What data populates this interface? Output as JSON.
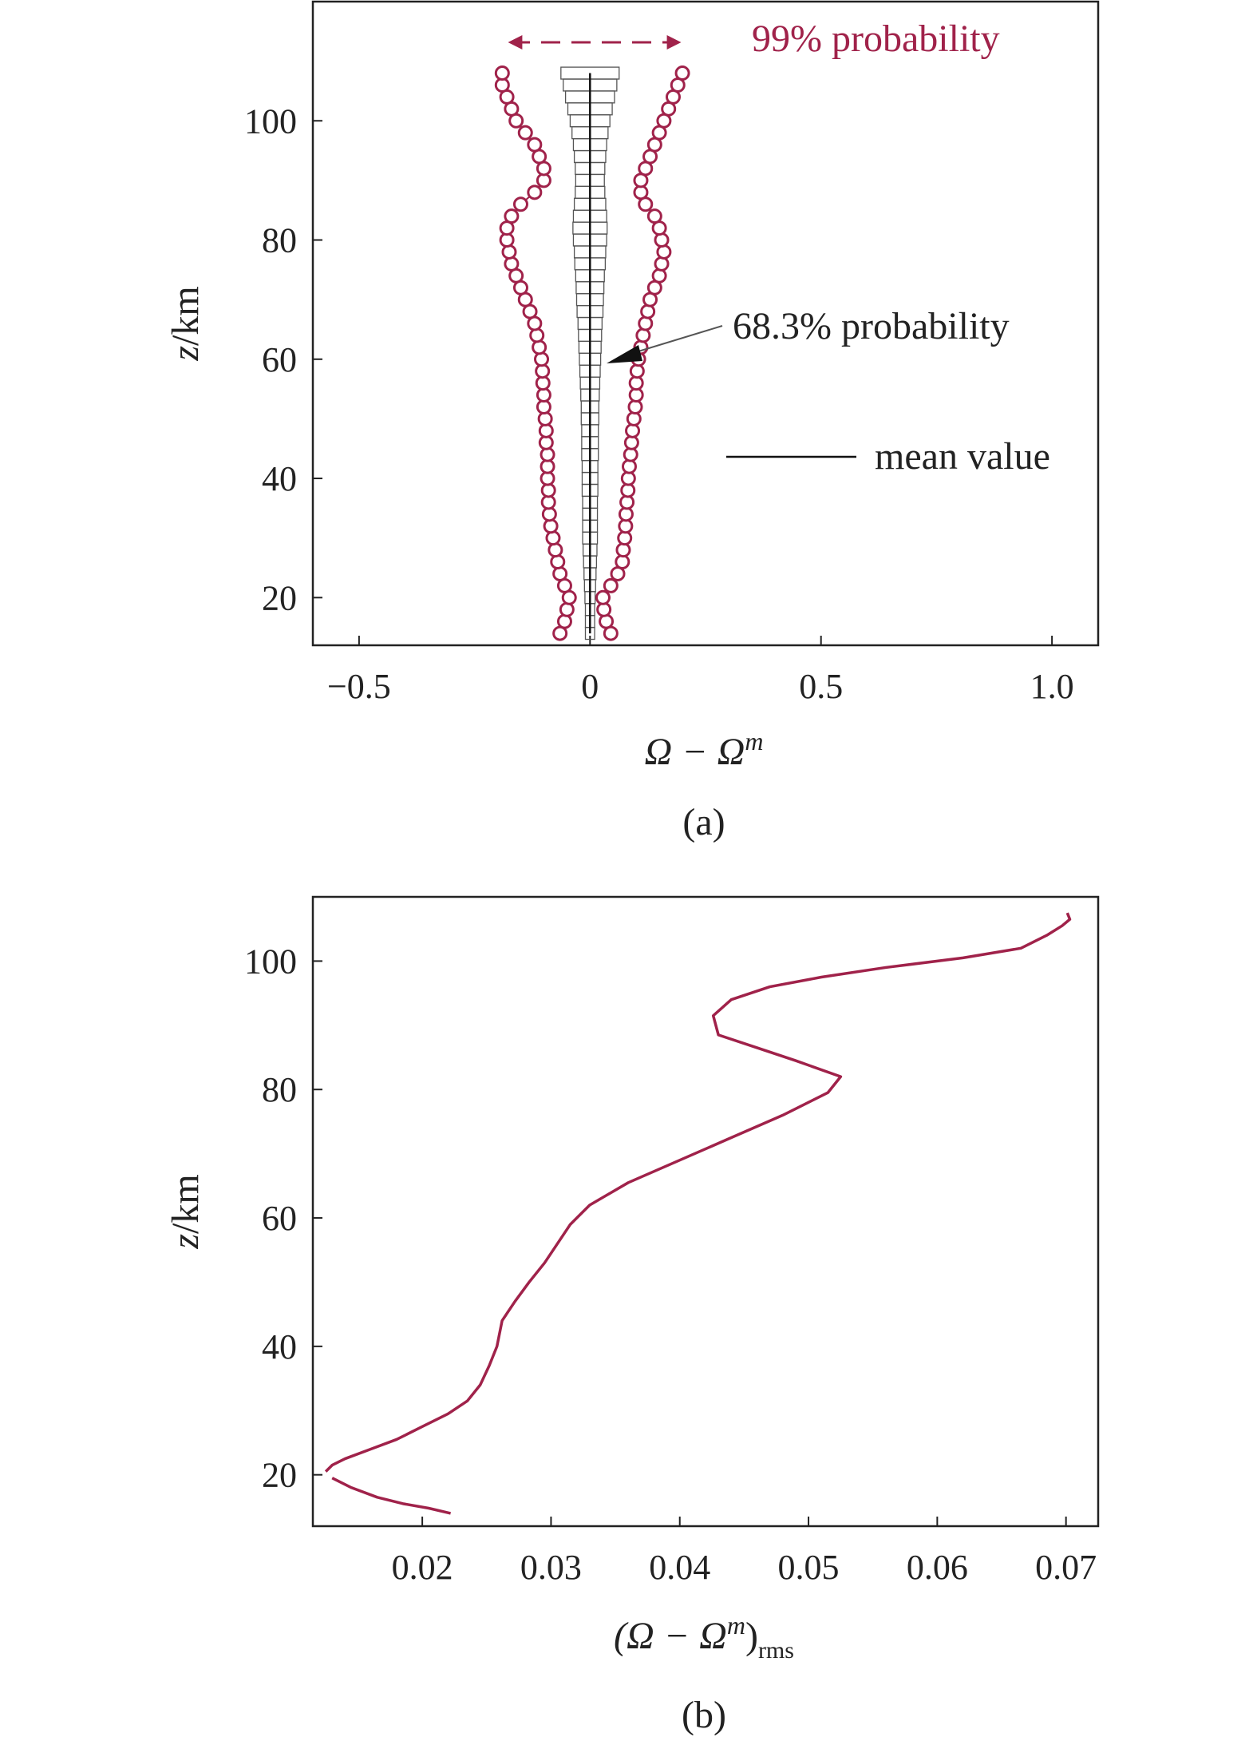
{
  "chart_data": [
    {
      "type": "line",
      "panel_label": "(a)",
      "xlabel_main": "Ω − Ω",
      "xlabel_sup": "m",
      "ylabel_var": "z",
      "ylabel_unit": "/km",
      "xlim": [
        -0.6,
        1.1
      ],
      "ylim": [
        12,
        120
      ],
      "xticks": [
        -0.5,
        0,
        0.5,
        1.0
      ],
      "xtick_labels": [
        "−0.5",
        "0",
        "0.5",
        "1.0"
      ],
      "yticks": [
        20,
        40,
        60,
        80,
        100
      ],
      "ytick_labels": [
        "20",
        "40",
        "60",
        "80",
        "100"
      ],
      "annotations": {
        "p99": "99% probability",
        "p683": "68.3% probability",
        "mean": "mean value"
      },
      "colors": {
        "series99": "#a0224a",
        "box": "#555555",
        "mean": "#111111"
      },
      "series": [
        {
          "name": "99% probability",
          "marker": "circle",
          "z": [
            14,
            16,
            18,
            20,
            22,
            24,
            26,
            28,
            30,
            32,
            34,
            36,
            38,
            40,
            42,
            44,
            46,
            48,
            50,
            52,
            54,
            56,
            58,
            60,
            62,
            64,
            66,
            68,
            70,
            72,
            74,
            76,
            78,
            80,
            82,
            84,
            86,
            88,
            90,
            92,
            94,
            96,
            98,
            100,
            102,
            104,
            106,
            108
          ],
          "low": [
            -0.065,
            -0.055,
            -0.05,
            -0.045,
            -0.055,
            -0.065,
            -0.07,
            -0.075,
            -0.08,
            -0.085,
            -0.088,
            -0.09,
            -0.09,
            -0.092,
            -0.092,
            -0.092,
            -0.095,
            -0.095,
            -0.097,
            -0.1,
            -0.1,
            -0.102,
            -0.103,
            -0.105,
            -0.11,
            -0.115,
            -0.12,
            -0.13,
            -0.14,
            -0.15,
            -0.16,
            -0.17,
            -0.175,
            -0.18,
            -0.18,
            -0.17,
            -0.15,
            -0.12,
            -0.1,
            -0.1,
            -0.11,
            -0.12,
            -0.14,
            -0.16,
            -0.17,
            -0.18,
            -0.19,
            -0.19
          ],
          "high": [
            0.045,
            0.035,
            0.03,
            0.028,
            0.045,
            0.06,
            0.07,
            0.072,
            0.075,
            0.077,
            0.078,
            0.08,
            0.082,
            0.083,
            0.085,
            0.088,
            0.09,
            0.092,
            0.095,
            0.098,
            0.1,
            0.1,
            0.102,
            0.105,
            0.11,
            0.115,
            0.12,
            0.125,
            0.13,
            0.14,
            0.15,
            0.155,
            0.16,
            0.155,
            0.15,
            0.14,
            0.12,
            0.11,
            0.11,
            0.12,
            0.13,
            0.14,
            0.15,
            0.16,
            0.17,
            0.18,
            0.19,
            0.2
          ]
        },
        {
          "name": "68.3% probability",
          "marker": "box",
          "z": [
            14,
            16,
            18,
            20,
            22,
            24,
            26,
            28,
            30,
            32,
            34,
            36,
            38,
            40,
            42,
            44,
            46,
            48,
            50,
            52,
            54,
            56,
            58,
            60,
            62,
            64,
            66,
            68,
            70,
            72,
            74,
            76,
            78,
            80,
            82,
            84,
            86,
            88,
            90,
            92,
            94,
            96,
            98,
            100,
            102,
            104,
            106,
            108
          ],
          "half_width": [
            0.01,
            0.01,
            0.01,
            0.011,
            0.012,
            0.013,
            0.014,
            0.015,
            0.016,
            0.016,
            0.016,
            0.016,
            0.017,
            0.017,
            0.017,
            0.018,
            0.018,
            0.018,
            0.019,
            0.019,
            0.02,
            0.021,
            0.022,
            0.023,
            0.024,
            0.025,
            0.026,
            0.028,
            0.029,
            0.03,
            0.031,
            0.033,
            0.034,
            0.036,
            0.037,
            0.036,
            0.034,
            0.032,
            0.031,
            0.032,
            0.034,
            0.036,
            0.039,
            0.043,
            0.048,
            0.053,
            0.058,
            0.063
          ]
        },
        {
          "name": "mean value",
          "x_const": 0,
          "z_range": [
            14,
            108
          ]
        }
      ]
    },
    {
      "type": "line",
      "panel_label": "(b)",
      "xlabel_main": "(Ω − Ω",
      "xlabel_sup": "m",
      "xlabel_close": ")",
      "xlabel_sub": "rms",
      "ylabel_var": "z",
      "ylabel_unit": "/km",
      "xlim": [
        0.0115,
        0.0725
      ],
      "ylim": [
        12,
        110
      ],
      "xticks": [
        0.02,
        0.03,
        0.04,
        0.05,
        0.06,
        0.07
      ],
      "xtick_labels": [
        "0.02",
        "0.03",
        "0.04",
        "0.05",
        "0.06",
        "0.07"
      ],
      "yticks": [
        20,
        40,
        60,
        80,
        100
      ],
      "ytick_labels": [
        "20",
        "40",
        "60",
        "80",
        "100"
      ],
      "colors": {
        "line": "#a0224a"
      },
      "segments": [
        {
          "x": [
            0.0222,
            0.0205,
            0.0185,
            0.0165,
            0.0145,
            0.013
          ],
          "y": [
            14,
            14.8,
            15.5,
            16.5,
            18,
            19.5
          ]
        },
        {
          "x": [
            0.0125,
            0.013,
            0.014,
            0.016,
            0.018,
            0.02,
            0.022,
            0.0235,
            0.0245,
            0.0252,
            0.0258,
            0.0262,
            0.0272,
            0.0283,
            0.0295,
            0.0305,
            0.0315,
            0.033,
            0.036,
            0.04,
            0.044,
            0.048,
            0.0515,
            0.0525,
            0.049,
            0.046,
            0.043,
            0.0426,
            0.044,
            0.047,
            0.051,
            0.056,
            0.062,
            0.0665,
            0.0685,
            0.0697,
            0.0703,
            0.0701
          ],
          "y": [
            20.5,
            21.5,
            22.5,
            24,
            25.5,
            27.5,
            29.5,
            31.5,
            34,
            37,
            40,
            44,
            47,
            50,
            53,
            56,
            59,
            62,
            65.5,
            69,
            72.5,
            76,
            79.5,
            82,
            84.5,
            86.5,
            88.5,
            91.5,
            94,
            96,
            97.5,
            99,
            100.5,
            102,
            104,
            105.5,
            106.5,
            107.5
          ]
        }
      ]
    }
  ]
}
